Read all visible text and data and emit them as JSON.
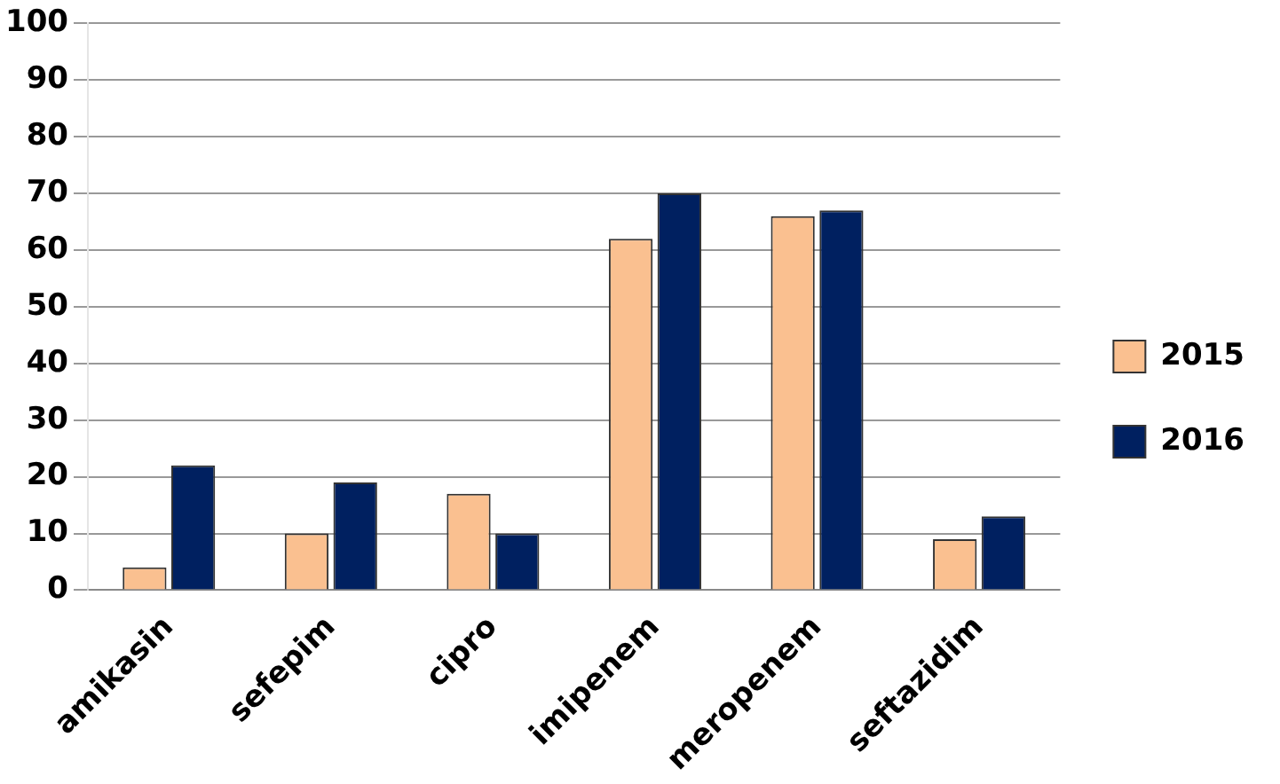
{
  "chart_data": {
    "type": "bar",
    "categories": [
      "amikasin",
      "sefepim",
      "cipro",
      "imipenem",
      "meropenem",
      "seftazidim"
    ],
    "series": [
      {
        "name": "2015",
        "color": "#fac090",
        "values": [
          4,
          10,
          17,
          62,
          66,
          9
        ]
      },
      {
        "name": "2016",
        "color": "#002060",
        "values": [
          22,
          19,
          10,
          70,
          67,
          13
        ]
      }
    ],
    "ylim": [
      0,
      100
    ],
    "yticks": [
      0,
      10,
      20,
      30,
      40,
      50,
      60,
      70,
      80,
      90,
      100
    ],
    "grid": "y",
    "legend": "right"
  }
}
